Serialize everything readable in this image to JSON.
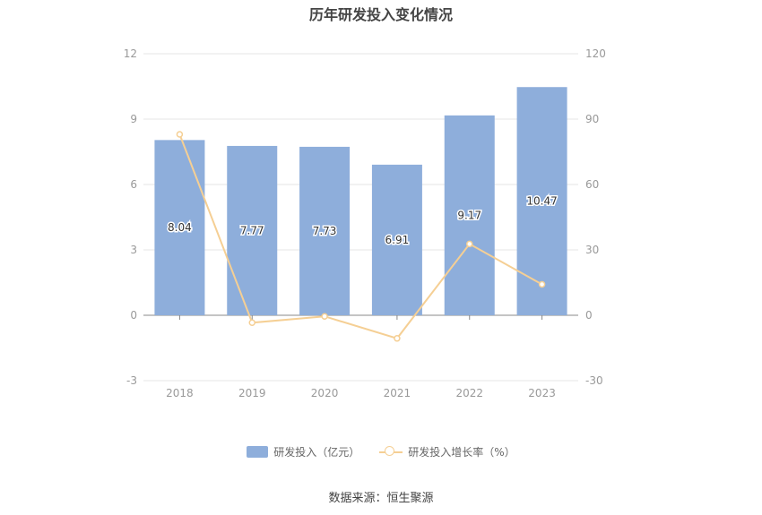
{
  "chart_data": {
    "type": "bar",
    "title": "历年研发投入变化情况",
    "categories": [
      "2018",
      "2019",
      "2020",
      "2021",
      "2022",
      "2023"
    ],
    "series": [
      {
        "name": "研发投入（亿元）",
        "type": "bar",
        "axis": "left",
        "values": [
          8.04,
          7.77,
          7.73,
          6.91,
          9.17,
          10.47
        ],
        "labels": [
          "8.04",
          "7.77",
          "7.73",
          "6.91",
          "9.17",
          "10.47"
        ],
        "color": "#8eaedb"
      },
      {
        "name": "研发投入增长率（%）",
        "type": "line",
        "axis": "right",
        "values": [
          83,
          -3.4,
          -0.5,
          -10.6,
          32.7,
          14.2
        ],
        "color": "#f5cf94"
      }
    ],
    "y_left": {
      "ylim": [
        -3,
        12
      ],
      "ticks": [
        "-3",
        "0",
        "3",
        "6",
        "9",
        "12"
      ]
    },
    "y_right": {
      "ylim": [
        -30,
        120
      ],
      "ticks": [
        "-30",
        "0",
        "30",
        "60",
        "90",
        "120"
      ]
    },
    "grid": true,
    "legend_position": "bottom"
  },
  "source": "数据来源：恒生聚源"
}
